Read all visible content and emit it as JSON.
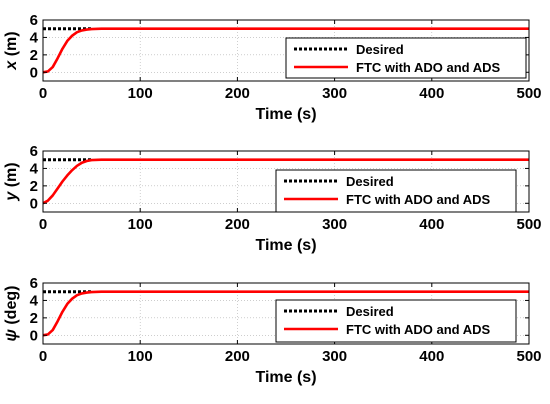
{
  "chart_data": [
    {
      "type": "line",
      "xlabel": "Time (s)",
      "ylabel_symbol": "x",
      "ylabel_unit": "(m)",
      "xlim": [
        0,
        500
      ],
      "ylim": [
        -1,
        6
      ],
      "xticks": [
        0,
        100,
        200,
        300,
        400,
        500
      ],
      "yticks": [
        0,
        2,
        4,
        6
      ],
      "grid": true,
      "legend_position": "center-right",
      "series": [
        {
          "name": "Desired",
          "style": "dotted",
          "color": "#000000",
          "x": [
            0,
            50
          ],
          "y": [
            5,
            5
          ]
        },
        {
          "name": "FTC with ADO and ADS",
          "style": "solid",
          "color": "#ff0000",
          "x": [
            0,
            5,
            10,
            15,
            20,
            25,
            30,
            35,
            40,
            45,
            50,
            60,
            80,
            100,
            200,
            300,
            400,
            500
          ],
          "y": [
            0,
            0.1,
            0.6,
            1.6,
            2.7,
            3.6,
            4.2,
            4.6,
            4.8,
            4.9,
            4.96,
            5.0,
            5.0,
            5.0,
            5.0,
            5.0,
            5.0,
            5.0
          ]
        }
      ]
    },
    {
      "type": "line",
      "xlabel": "Time (s)",
      "ylabel_symbol": "y",
      "ylabel_unit": "(m)",
      "xlim": [
        0,
        500
      ],
      "ylim": [
        -1,
        6
      ],
      "xticks": [
        0,
        100,
        200,
        300,
        400,
        500
      ],
      "yticks": [
        0,
        2,
        4,
        6
      ],
      "grid": true,
      "legend_position": "bottom-right",
      "series": [
        {
          "name": "Desired",
          "style": "dotted",
          "color": "#000000",
          "x": [
            0,
            50
          ],
          "y": [
            5,
            5
          ]
        },
        {
          "name": "FTC with ADO and ADS",
          "style": "solid",
          "color": "#ff0000",
          "x": [
            0,
            5,
            10,
            15,
            20,
            25,
            30,
            35,
            40,
            45,
            50,
            60,
            80,
            100,
            200,
            300,
            400,
            500
          ],
          "y": [
            0,
            0.3,
            0.9,
            1.7,
            2.5,
            3.2,
            3.8,
            4.3,
            4.65,
            4.85,
            4.96,
            5.0,
            5.0,
            5.0,
            5.0,
            5.0,
            5.0,
            5.0
          ]
        }
      ]
    },
    {
      "type": "line",
      "xlabel": "Time (s)",
      "ylabel_symbol": "ψ",
      "ylabel_unit": "(deg)",
      "xlim": [
        0,
        500
      ],
      "ylim": [
        -1,
        6
      ],
      "xticks": [
        0,
        100,
        200,
        300,
        400,
        500
      ],
      "yticks": [
        0,
        2,
        4,
        6
      ],
      "grid": true,
      "legend_position": "bottom-right",
      "series": [
        {
          "name": "Desired",
          "style": "dotted",
          "color": "#000000",
          "x": [
            0,
            50
          ],
          "y": [
            5,
            5
          ]
        },
        {
          "name": "FTC with ADO and ADS",
          "style": "solid",
          "color": "#ff0000",
          "x": [
            0,
            5,
            10,
            15,
            20,
            25,
            30,
            35,
            40,
            45,
            50,
            60,
            80,
            100,
            200,
            300,
            400,
            500
          ],
          "y": [
            0,
            0.1,
            0.6,
            1.6,
            2.7,
            3.6,
            4.2,
            4.6,
            4.8,
            4.9,
            4.96,
            5.0,
            5.0,
            5.0,
            5.0,
            5.0,
            5.0,
            5.0
          ]
        }
      ]
    }
  ]
}
